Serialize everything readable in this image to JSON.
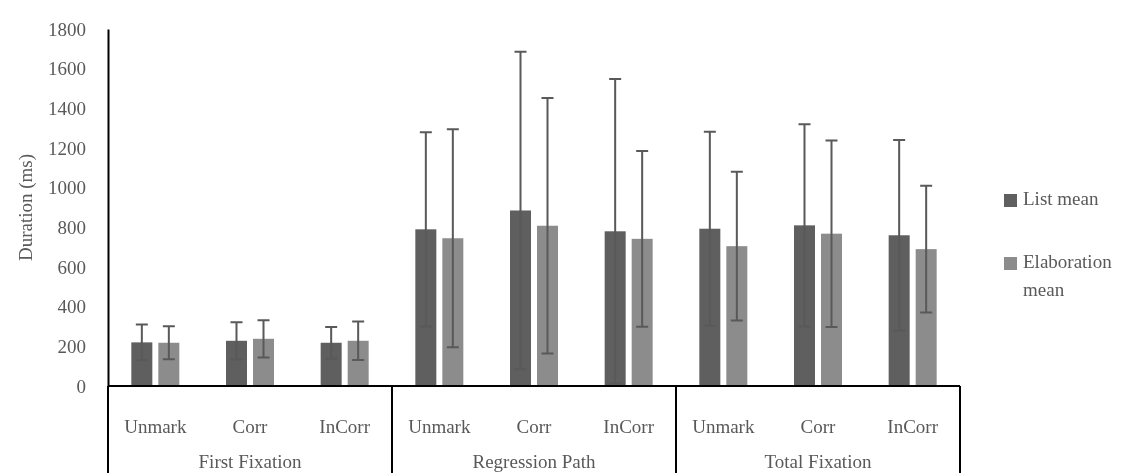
{
  "chart_data": {
    "type": "bar",
    "ylabel": "Duration (ms)",
    "categories": [
      "Unmark",
      "Corr",
      "InCorr",
      "Unmark",
      "Corr",
      "InCorr",
      "Unmark",
      "Corr",
      "InCorr"
    ],
    "annotations": [
      "First Fixation",
      "Regression Path",
      "Total Fixation"
    ],
    "series": [
      {
        "name": "List mean",
        "color": "#5f5f5f",
        "values": [
          220,
          228,
          218,
          790,
          885,
          780,
          793,
          810,
          760
        ],
        "errors": [
          90,
          94,
          80,
          490,
          800,
          768,
          489,
          510,
          480
        ]
      },
      {
        "name": "Elaboration mean",
        "color": "#8c8c8c",
        "values": [
          218,
          238,
          228,
          745,
          808,
          742,
          705,
          768,
          690
        ],
        "errors": [
          83,
          94,
          97,
          550,
          644,
          443,
          375,
          470,
          320
        ]
      }
    ],
    "ylim": [
      0,
      1800
    ],
    "yticks": [
      0,
      200,
      400,
      600,
      800,
      1000,
      1200,
      1400,
      1600,
      1800
    ],
    "grid": false,
    "legend": "right"
  }
}
